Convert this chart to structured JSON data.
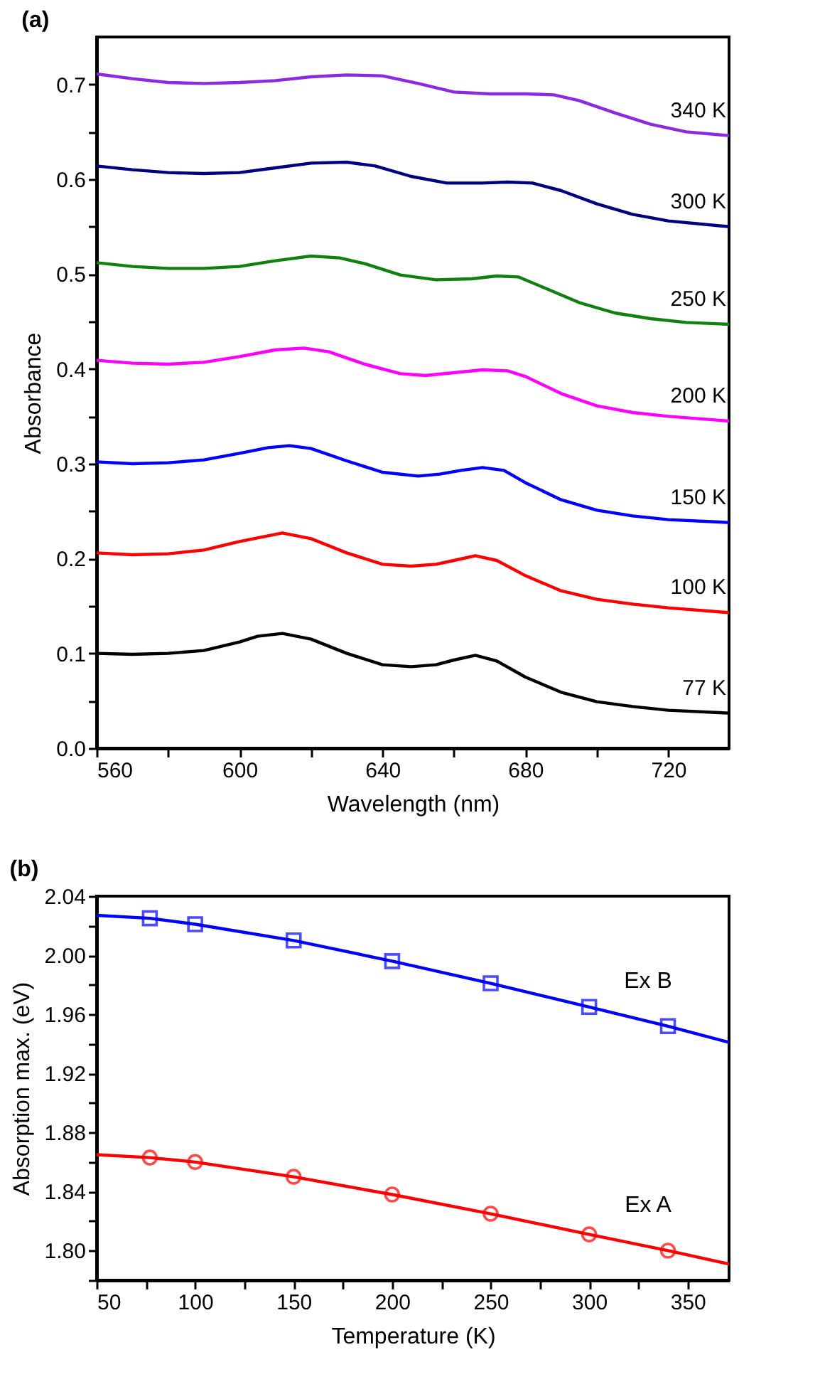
{
  "chart_data": [
    {
      "type": "line",
      "title": "(a)",
      "xlabel": "Wavelength (nm)",
      "ylabel": "Absorbance",
      "xlim": [
        560,
        737
      ],
      "ylim": [
        0,
        0.75
      ],
      "xticks": [
        560,
        {
          "value": 580,
          "label": null
        },
        600,
        {
          "value": 620,
          "label": null
        },
        640,
        {
          "value": 660,
          "label": null
        },
        680,
        {
          "value": 700,
          "label": null
        },
        720
      ],
      "yticks": [
        {
          "value": 0,
          "label": "0.0"
        },
        {
          "value": 0.05,
          "label": null
        },
        0.1,
        {
          "value": 0.15,
          "label": null
        },
        0.2,
        {
          "value": 0.25,
          "label": null
        },
        0.3,
        {
          "value": 0.35,
          "label": null
        },
        0.4,
        {
          "value": 0.45,
          "label": null
        },
        0.5,
        {
          "value": 0.55,
          "label": null
        },
        0.6,
        {
          "value": 0.65,
          "label": null
        },
        0.7
      ],
      "grid": false,
      "marker": "none",
      "line_style": "solid",
      "series": [
        {
          "name": "77 K",
          "color": "#000000",
          "x": [
            560,
            570,
            580,
            590,
            600,
            605,
            612,
            620,
            630,
            640,
            648,
            655,
            660,
            666,
            672,
            680,
            690,
            700,
            710,
            720,
            737
          ],
          "values": [
            0.1,
            0.099,
            0.1,
            0.103,
            0.112,
            0.118,
            0.121,
            0.115,
            0.1,
            0.088,
            0.086,
            0.088,
            0.093,
            0.098,
            0.092,
            0.075,
            0.059,
            0.049,
            0.044,
            0.04,
            0.037
          ]
        },
        {
          "name": "100 K",
          "color": "#ff0000",
          "x": [
            560,
            570,
            580,
            590,
            600,
            612,
            620,
            630,
            640,
            648,
            655,
            660,
            666,
            672,
            680,
            690,
            700,
            710,
            720,
            737
          ],
          "values": [
            0.206,
            0.204,
            0.205,
            0.209,
            0.218,
            0.227,
            0.221,
            0.206,
            0.194,
            0.192,
            0.194,
            0.198,
            0.203,
            0.198,
            0.182,
            0.166,
            0.157,
            0.152,
            0.148,
            0.143
          ]
        },
        {
          "name": "150 K",
          "color": "#0000ff",
          "x": [
            560,
            570,
            580,
            590,
            600,
            608,
            614,
            620,
            630,
            640,
            650,
            656,
            662,
            668,
            674,
            680,
            690,
            700,
            710,
            720,
            737
          ],
          "values": [
            0.302,
            0.3,
            0.301,
            0.304,
            0.311,
            0.317,
            0.319,
            0.316,
            0.303,
            0.291,
            0.287,
            0.289,
            0.293,
            0.296,
            0.293,
            0.28,
            0.262,
            0.251,
            0.245,
            0.241,
            0.238
          ]
        },
        {
          "name": "200 K",
          "color": "#ff00ff",
          "x": [
            560,
            570,
            580,
            590,
            600,
            610,
            618,
            625,
            635,
            645,
            652,
            660,
            668,
            675,
            680,
            690,
            700,
            710,
            720,
            737
          ],
          "values": [
            0.409,
            0.406,
            0.405,
            0.407,
            0.413,
            0.42,
            0.422,
            0.418,
            0.405,
            0.395,
            0.393,
            0.396,
            0.399,
            0.398,
            0.392,
            0.374,
            0.361,
            0.354,
            0.35,
            0.345
          ]
        },
        {
          "name": "250 K",
          "color": "#108010",
          "x": [
            560,
            570,
            580,
            590,
            600,
            610,
            620,
            628,
            635,
            645,
            655,
            665,
            672,
            678,
            685,
            695,
            705,
            715,
            725,
            737
          ],
          "values": [
            0.512,
            0.508,
            0.506,
            0.506,
            0.508,
            0.514,
            0.519,
            0.517,
            0.511,
            0.499,
            0.494,
            0.495,
            0.498,
            0.497,
            0.486,
            0.47,
            0.459,
            0.453,
            0.449,
            0.447
          ]
        },
        {
          "name": "300 K",
          "color": "#000080",
          "x": [
            560,
            570,
            580,
            590,
            600,
            610,
            620,
            630,
            638,
            648,
            658,
            668,
            675,
            682,
            690,
            700,
            710,
            720,
            737
          ],
          "values": [
            0.614,
            0.61,
            0.607,
            0.606,
            0.607,
            0.612,
            0.617,
            0.618,
            0.614,
            0.603,
            0.596,
            0.596,
            0.597,
            0.596,
            0.588,
            0.574,
            0.563,
            0.556,
            0.55
          ]
        },
        {
          "name": "340 K",
          "color": "#8a2be2",
          "x": [
            560,
            570,
            580,
            590,
            600,
            610,
            620,
            630,
            640,
            650,
            660,
            670,
            680,
            688,
            695,
            705,
            715,
            725,
            737
          ],
          "values": [
            0.711,
            0.706,
            0.702,
            0.701,
            0.702,
            0.704,
            0.708,
            0.71,
            0.709,
            0.701,
            0.692,
            0.69,
            0.69,
            0.689,
            0.683,
            0.67,
            0.658,
            0.65,
            0.646
          ]
        }
      ]
    },
    {
      "type": "scatter",
      "title": "(b)",
      "xlabel": "Temperature (K)",
      "ylabel": "Absorption max. (eV)",
      "xlim": [
        50,
        371
      ],
      "ylim": [
        1.78,
        2.04
      ],
      "xticks": [
        50,
        {
          "value": 75,
          "label": null
        },
        100,
        {
          "value": 125,
          "label": null
        },
        150,
        {
          "value": 175,
          "label": null
        },
        200,
        {
          "value": 225,
          "label": null
        },
        250,
        {
          "value": 275,
          "label": null
        },
        300,
        {
          "value": 325,
          "label": null
        },
        350
      ],
      "yticks": [
        {
          "value": 1.78,
          "label": null
        },
        {
          "value": 1.8,
          "label": "1.80"
        },
        {
          "value": 1.82,
          "label": null
        },
        1.84,
        {
          "value": 1.86,
          "label": null
        },
        1.88,
        {
          "value": 1.9,
          "label": null
        },
        1.92,
        {
          "value": 1.94,
          "label": null
        },
        1.96,
        {
          "value": 1.98,
          "label": null
        },
        {
          "value": 2,
          "label": "2.00"
        },
        {
          "value": 2.02,
          "label": null
        },
        2.04
      ],
      "grid": false,
      "series": [
        {
          "type": "line",
          "color": "#0000ff",
          "marker": "none",
          "x": [
            50,
            77,
            100,
            150,
            200,
            250,
            300,
            340,
            371
          ],
          "values": [
            2.027,
            2.025,
            2.021,
            2.01,
            1.996,
            1.981,
            1.965,
            1.952,
            1.941
          ]
        },
        {
          "type": "line",
          "color": "#ff0000",
          "marker": "none",
          "x": [
            50,
            77,
            100,
            150,
            200,
            250,
            300,
            340,
            371
          ],
          "values": [
            1.865,
            1.863,
            1.86,
            1.85,
            1.838,
            1.825,
            1.811,
            1.8,
            1.791
          ]
        },
        {
          "name": "Ex B",
          "color": "#0000ff",
          "marker": "square",
          "x": [
            77,
            100,
            150,
            200,
            250,
            300,
            340
          ],
          "values": [
            2.025,
            2.021,
            2.01,
            1.996,
            1.981,
            1.965,
            1.952
          ]
        },
        {
          "name": "Ex A",
          "color": "#ff0000",
          "marker": "circle",
          "x": [
            77,
            100,
            150,
            200,
            250,
            300,
            340
          ],
          "values": [
            1.863,
            1.86,
            1.85,
            1.838,
            1.825,
            1.811,
            1.8
          ]
        }
      ]
    }
  ]
}
